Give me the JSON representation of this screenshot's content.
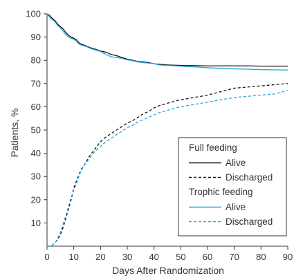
{
  "colors": {
    "full": "#111111",
    "trophic": "#1aa6dd",
    "axis": "#333333",
    "legend_border": "#333333"
  },
  "chart_data": {
    "type": "line",
    "xlabel": "Days After Randomization",
    "ylabel": "Patients, %",
    "xlim": [
      0,
      90
    ],
    "ylim": [
      0,
      100
    ],
    "xticks": [
      0,
      10,
      20,
      30,
      40,
      50,
      60,
      70,
      80,
      90
    ],
    "yticks": [
      10,
      20,
      30,
      40,
      50,
      60,
      70,
      80,
      90,
      100
    ],
    "grid": false,
    "legend_position": "bottom-right",
    "legend": {
      "groups": [
        {
          "title": "Full feeding",
          "entries": [
            {
              "label": "Alive",
              "series": "full_alive"
            },
            {
              "label": "Discharged",
              "series": "full_discharged"
            }
          ]
        },
        {
          "title": "Trophic feeding",
          "entries": [
            {
              "label": "Alive",
              "series": "trophic_alive"
            },
            {
              "label": "Discharged",
              "series": "trophic_discharged"
            }
          ]
        }
      ]
    },
    "series": [
      {
        "id": "full_alive",
        "color": "#111111",
        "dash": "solid",
        "x": [
          0,
          1,
          2,
          3,
          4,
          5,
          6,
          7,
          8,
          9,
          10,
          11,
          12,
          13,
          14,
          15,
          16,
          18,
          20,
          22,
          24,
          26,
          28,
          30,
          32,
          34,
          36,
          38,
          40,
          42,
          45,
          50,
          55,
          60,
          65,
          70,
          75,
          80,
          85,
          90
        ],
        "y": [
          100,
          99.2,
          98.0,
          97.0,
          95.5,
          94.5,
          93.5,
          92.0,
          90.8,
          90.0,
          89.5,
          88.8,
          87.5,
          86.8,
          86.5,
          86.0,
          85.5,
          84.8,
          84.0,
          83.5,
          82.5,
          82.0,
          81.2,
          80.5,
          80.0,
          79.5,
          79.3,
          79.0,
          78.5,
          78.3,
          78.0,
          77.8,
          77.7,
          77.6,
          77.6,
          77.6,
          77.6,
          77.5,
          77.5,
          77.5
        ]
      },
      {
        "id": "trophic_alive",
        "color": "#1aa6dd",
        "dash": "solid",
        "x": [
          0,
          1,
          2,
          3,
          4,
          5,
          6,
          7,
          8,
          9,
          10,
          11,
          12,
          13,
          14,
          15,
          16,
          18,
          20,
          22,
          24,
          26,
          28,
          30,
          32,
          34,
          36,
          38,
          40,
          42,
          45,
          50,
          55,
          60,
          65,
          70,
          75,
          80,
          85,
          90
        ],
        "y": [
          100,
          98.5,
          97.5,
          96.5,
          95.0,
          94.0,
          92.5,
          91.2,
          90.0,
          89.5,
          89.0,
          88.2,
          87.0,
          86.5,
          86.2,
          85.8,
          85.2,
          84.5,
          83.8,
          82.5,
          81.5,
          81.2,
          80.8,
          80.2,
          79.8,
          79.3,
          79.0,
          78.8,
          78.5,
          78.0,
          77.8,
          77.5,
          77.2,
          76.8,
          76.5,
          76.3,
          76.2,
          76.0,
          75.9,
          75.8
        ]
      },
      {
        "id": "full_discharged",
        "color": "#111111",
        "dash": "dashed",
        "x": [
          0,
          1,
          2,
          3,
          4,
          5,
          6,
          7,
          8,
          9,
          10,
          11,
          12,
          13,
          14,
          15,
          16,
          17,
          18,
          19,
          20,
          22,
          24,
          26,
          28,
          30,
          32,
          34,
          36,
          38,
          40,
          42,
          45,
          48,
          50,
          55,
          60,
          65,
          70,
          75,
          80,
          85,
          90
        ],
        "y": [
          0,
          0,
          0.5,
          1.5,
          3.0,
          5.0,
          8.0,
          12.0,
          16.0,
          20.0,
          25.0,
          28.0,
          31.0,
          33.5,
          35.0,
          37.0,
          39.0,
          40.5,
          42.0,
          43.5,
          45.0,
          47.0,
          48.5,
          50.0,
          51.5,
          53.0,
          54.0,
          55.5,
          57.0,
          58.0,
          59.5,
          60.5,
          61.5,
          62.5,
          63.0,
          64.0,
          65.0,
          66.5,
          68.0,
          68.5,
          69.0,
          69.5,
          70.0
        ]
      },
      {
        "id": "trophic_discharged",
        "color": "#1aa6dd",
        "dash": "dashed",
        "x": [
          0,
          1,
          2,
          3,
          4,
          5,
          6,
          7,
          8,
          9,
          10,
          11,
          12,
          13,
          14,
          15,
          16,
          17,
          18,
          19,
          20,
          22,
          24,
          26,
          28,
          30,
          32,
          34,
          36,
          38,
          40,
          42,
          45,
          48,
          50,
          55,
          60,
          65,
          70,
          75,
          80,
          85,
          90
        ],
        "y": [
          0,
          0,
          0.5,
          1.5,
          3.5,
          6.0,
          9.5,
          13.0,
          17.0,
          21.0,
          24.0,
          27.0,
          30.5,
          33.0,
          35.0,
          36.5,
          38.0,
          39.5,
          41.0,
          42.0,
          43.0,
          45.0,
          46.5,
          48.0,
          49.5,
          51.0,
          52.0,
          53.5,
          54.5,
          55.5,
          56.5,
          57.5,
          58.5,
          59.5,
          60.0,
          61.0,
          62.0,
          63.0,
          64.0,
          64.5,
          65.0,
          65.5,
          67.0
        ]
      }
    ]
  }
}
